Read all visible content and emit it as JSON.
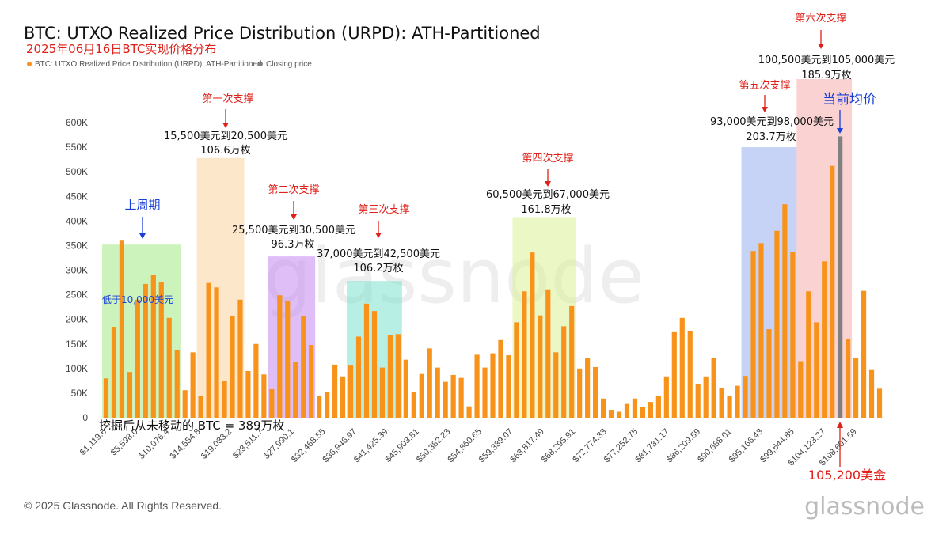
{
  "header": {
    "title": "BTC: UTXO Realized Price Distribution (URPD): ATH-Partitioned",
    "subtitle": "2025年06月16日BTC实现价格分布"
  },
  "legend": {
    "items": [
      {
        "label": "BTC: UTXO Realized Price Distribution (URPD): ATH-Partitioned",
        "color": "#f7931a"
      },
      {
        "label": "Closing price",
        "color": "#808080"
      }
    ]
  },
  "footer": {
    "copyright": "© 2025 Glassnode. All Rights Reserved.",
    "brand": "glassnode"
  },
  "watermark": {
    "text": "glassnode"
  },
  "chart_data": {
    "type": "bar",
    "ylim": [
      0,
      600000
    ],
    "y_ticks": [
      "0",
      "50K",
      "100K",
      "150K",
      "200K",
      "250K",
      "300K",
      "350K",
      "400K",
      "450K",
      "500K",
      "550K",
      "600K"
    ],
    "x_tick_labels": [
      "$1,119.6",
      "$5,598.0",
      "$10,076.4",
      "$14,554.8",
      "$19,033.2",
      "$23,511.7",
      "$27,990.1",
      "$32,468.55",
      "$36,946.97",
      "$41,425.39",
      "$45,903.81",
      "$50,382.23",
      "$54,860.65",
      "$59,339.07",
      "$63,817.49",
      "$68,295.91",
      "$72,774.33",
      "$77,252.75",
      "$81,731.17",
      "$86,209.59",
      "$90,688.01",
      "$95,166.43",
      "$99,644.85",
      "$104,123.27",
      "$108,601.69"
    ],
    "values": [
      80000,
      185000,
      360000,
      93000,
      240000,
      272000,
      290000,
      275000,
      203000,
      137000,
      56000,
      133000,
      45000,
      274000,
      265000,
      74000,
      206000,
      240000,
      95000,
      150000,
      88000,
      58000,
      249000,
      238000,
      114000,
      206000,
      148000,
      45000,
      52000,
      108000,
      84000,
      106000,
      165000,
      232000,
      217000,
      102000,
      168000,
      170000,
      118000,
      52000,
      89000,
      141000,
      102000,
      73000,
      87000,
      81000,
      23000,
      128000,
      102000,
      131000,
      158000,
      127000,
      194000,
      257000,
      336000,
      208000,
      261000,
      133000,
      186000,
      227000,
      100000,
      122000,
      103000,
      39000,
      16000,
      12000,
      28000,
      39000,
      21000,
      32000,
      44000,
      84000,
      174000,
      203000,
      176000,
      68000,
      84000,
      122000,
      61000,
      44000,
      65000,
      85000,
      339000,
      355000,
      180000,
      380000,
      434000,
      337000,
      115000,
      257000,
      194000,
      318000,
      512000,
      572000,
      160000,
      122000,
      258000,
      97000,
      59000
    ],
    "closing_price_bar_index": 93,
    "zones": [
      {
        "start": 0,
        "end": 9,
        "color": "#9be87a",
        "top": 352000
      },
      {
        "start": 12,
        "end": 17,
        "color": "#f9cf96",
        "top": 528000
      },
      {
        "start": 21,
        "end": 26,
        "color": "#c07ef0",
        "top": 328000
      },
      {
        "start": 31,
        "end": 37,
        "color": "#6fe0cc",
        "top": 278000
      },
      {
        "start": 52,
        "end": 59,
        "color": "#d8ef8c",
        "top": 408000
      },
      {
        "start": 81,
        "end": 87,
        "color": "#8ea8ef",
        "top": 550000
      },
      {
        "start": 88,
        "end": 94,
        "color": "#f7a5a5",
        "top": 690000
      }
    ],
    "annotations": {
      "prev_cycle": "上周期",
      "below_10k": "低于10,000美元",
      "never_moved": "挖掘后从未移动的 BTC = 389万枚",
      "support1_title": "第一次支撑",
      "support1_range": "15,500美元到20,500美元",
      "support1_amount": "106.6万枚",
      "support2_title": "第二次支撑",
      "support2_range": "25,500美元到30,500美元",
      "support2_amount": "96.3万枚",
      "support3_title": "第三次支撑",
      "support3_range": "37,000美元到42,500美元",
      "support3_amount": "106.2万枚",
      "support4_title": "第四次支撑",
      "support4_range": "60,500美元到67,000美元",
      "support4_amount": "161.8万枚",
      "support5_title": "第五次支撑",
      "support5_range": "93,000美元到98,000美元",
      "support5_amount": "203.7万枚",
      "support6_title": "第六次支撑",
      "support6_range": "100,500美元到105,000美元",
      "support6_amount": "185.9万枚",
      "current_avg": "当前均价",
      "current_price": "105,200美金"
    }
  }
}
